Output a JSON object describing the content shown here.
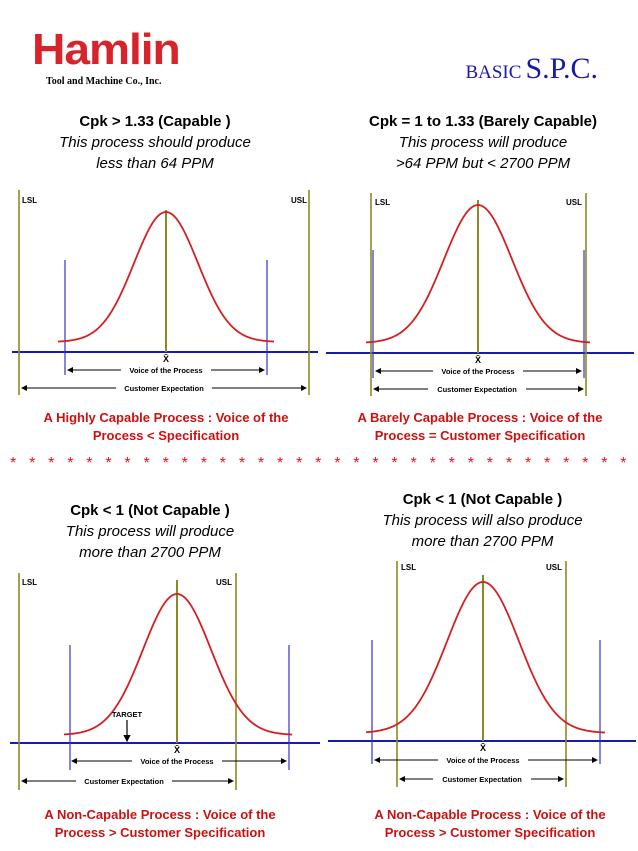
{
  "logo": {
    "name": "Hamlin",
    "subtitle": "Tool and Machine Co., Inc."
  },
  "title": {
    "part1": "BASIC",
    "part2": "S.P.C."
  },
  "separator": "* * * * * * * * * * * * * * * * * * * * * * * * * * * * * * * * * * * * * * * * * * * * * * *",
  "panels": [
    {
      "heading": "Cpk > 1.33 (Capable )",
      "line2": "This process should produce",
      "line3": "less than 64 PPM",
      "lsl": "LSL",
      "usl": "USL",
      "xbar": "X̄",
      "voice": "Voice of the Process",
      "customer": "Customer Expectation",
      "caption1": "A Highly Capable Process : Voice of the",
      "caption2": "Process < Specification"
    },
    {
      "heading": "Cpk = 1 to 1.33 (Barely Capable)",
      "line2": "This process will produce",
      "line3": ">64 PPM but < 2700 PPM",
      "lsl": "LSL",
      "usl": "USL",
      "xbar": "X̄",
      "voice": "Voice of the Process",
      "customer": "Customer Expectation",
      "caption1": "A Barely Capable Process : Voice of the",
      "caption2": "Process = Customer Specification"
    },
    {
      "heading": "Cpk < 1 (Not Capable )",
      "line2": "This process will produce",
      "line3": "more than 2700 PPM",
      "lsl": "LSL",
      "usl": "USL",
      "xbar": "X̄",
      "target": "TARGET",
      "voice": "Voice of the Process",
      "customer": "Customer Expectation",
      "caption1": "A Non-Capable Process : Voice of the",
      "caption2": "Process > Customer Specification"
    },
    {
      "heading": "Cpk < 1 (Not Capable )",
      "line2": "This process will also produce",
      "line3": "more than 2700 PPM",
      "lsl": "LSL",
      "usl": "USL",
      "xbar": "X̄",
      "voice": "Voice of the Process",
      "customer": "Customer Expectation",
      "caption1": "A Non-Capable Process : Voice of the",
      "caption2": "Process > Customer Specification"
    }
  ]
}
